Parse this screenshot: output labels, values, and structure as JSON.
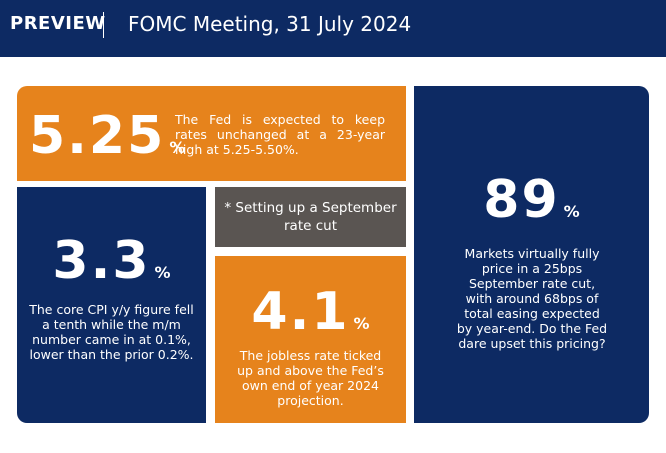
{
  "header": {
    "preview_label": "PREVIEW",
    "title": "FOMC Meeting, 31 July 2024"
  },
  "cards": {
    "rate": {
      "value": "5.25",
      "unit": "%",
      "text": "The Fed is expected to keep rates unchanged at a 23-year high at 5.25-5.50%."
    },
    "cpi": {
      "value": "3.3",
      "unit": "%",
      "text": "The core CPI y/y figure fell a tenth while the m/m number came in at 0.1%, lower than the prior 0.2%."
    },
    "note": {
      "text": "* Setting up a September rate cut"
    },
    "jobless": {
      "value": "4.1",
      "unit": "%",
      "text": "The jobless rate ticked up and above the Fed’s own end of year 2024 projection."
    },
    "markets": {
      "value": "89",
      "unit": "%",
      "text": "Markets virtually fully price in a 25bps September rate cut, with around 68bps of total easing expected by year-end. Do the Fed dare upset this pricing?"
    }
  },
  "colors": {
    "navy": "#0d2a63",
    "orange": "#e6831c",
    "gray": "#5a5552"
  }
}
